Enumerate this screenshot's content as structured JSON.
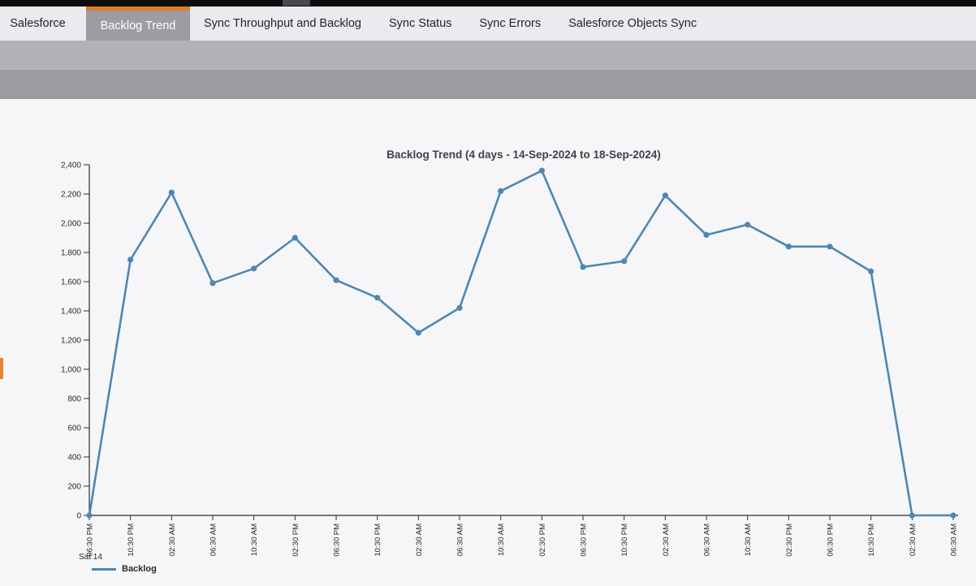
{
  "tabs": [
    {
      "label": "Salesforce",
      "active": false
    },
    {
      "label": "Backlog Trend",
      "active": true
    },
    {
      "label": "Sync Throughput and Backlog",
      "active": false
    },
    {
      "label": "Sync Status",
      "active": false
    },
    {
      "label": "Sync Errors",
      "active": false
    },
    {
      "label": "Salesforce Objects Sync",
      "active": false
    }
  ],
  "colors": {
    "topbar": "#0d0d0d",
    "tabbar_bg": "#eaeaef",
    "active_tab_bg": "#9d9da1",
    "active_tab_accent": "#dd7b28",
    "toolbar_upper": "#b2b2b6",
    "toolbar_lower": "#9c9ca0",
    "page_bg": "#f6f6f8",
    "series_line": "#4e86b4",
    "left_edge_handle": "#e8832c"
  },
  "chart_data": {
    "type": "line",
    "title": "Backlog Trend (4 days - 14-Sep-2024 to 18-Sep-2024)",
    "x_labels": [
      "06:30 PM",
      "10:30 PM",
      "02:30 AM",
      "06:30 AM",
      "10:30 AM",
      "02:30 PM",
      "06:30 PM",
      "10:30 PM",
      "02:30 AM",
      "06:30 AM",
      "10:30 AM",
      "02:30 PM",
      "06:30 PM",
      "10:30 PM",
      "02:30 AM",
      "06:30 AM",
      "10:30 AM",
      "02:30 PM",
      "06:30 PM",
      "10:30 PM",
      "02:30 AM",
      "06:30 AM"
    ],
    "x_axis_day_label": "Sat 14",
    "series": [
      {
        "name": "Backlog",
        "color": "#4e86b4",
        "values": [
          0,
          1750,
          2210,
          1590,
          1690,
          1900,
          1610,
          1490,
          1250,
          1420,
          2220,
          2360,
          1700,
          1740,
          2190,
          1920,
          1990,
          1840,
          1840,
          1670,
          0,
          0
        ]
      }
    ],
    "ylim": [
      0,
      2400
    ],
    "y_tick_step": 200,
    "grid": false,
    "legend_position": "bottom-left"
  }
}
